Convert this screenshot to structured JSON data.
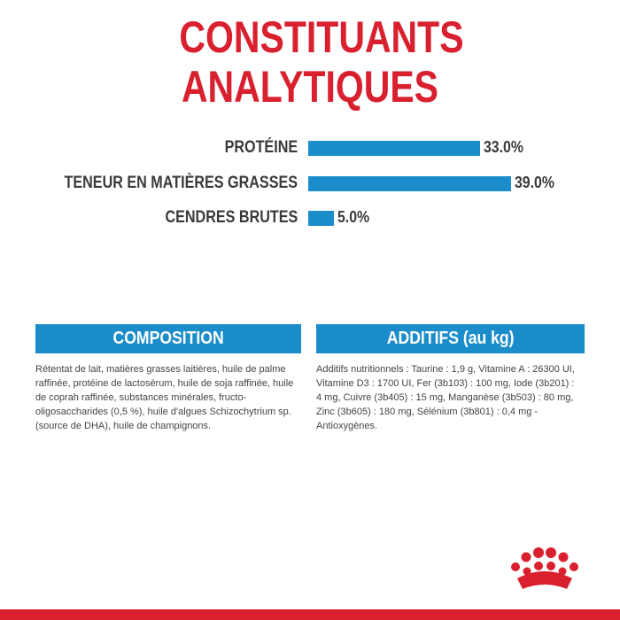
{
  "chart_data": {
    "type": "bar",
    "title": "CONSTITUANTS ANALYTIQUES",
    "categories": [
      "PROTÉINE",
      "TENEUR EN MATIÈRES GRASSES",
      "CENDRES BRUTES"
    ],
    "values": [
      33,
      39,
      5
    ],
    "value_labels": [
      "33.0%",
      "39.0%",
      "5.0%"
    ],
    "color": "#1b8dca"
  },
  "sections": [
    {
      "title": "COMPOSITION",
      "color": "#1b8dca",
      "text": "Rétentat de lait, matières grasses laitières, huile de palme raffinée, protéine de lactosérum, huile de soja raffinée, huile de coprah raffinée, substances minérales, fructo-oligosaccharides (0,5 %), huile d'algues Schizochytrium sp. (source de DHA), huile de champignons."
    },
    {
      "title": "ADDITIFS (au kg)",
      "color": "#1b8dca",
      "text": "Additifs nutritionnels : Taurine : 1,9 g, Vitamine A : 26300 UI, Vitamine D3 : 1700 UI, Fer (3b103) : 100 mg, Iode (3b201) : 4 mg, Cuivre (3b405) : 15 mg, Manganèse (3b503) : 80 mg, Zinc (3b605) : 180 mg, Sélénium (3b801) : 0,4 mg - Antioxygènes."
    }
  ]
}
